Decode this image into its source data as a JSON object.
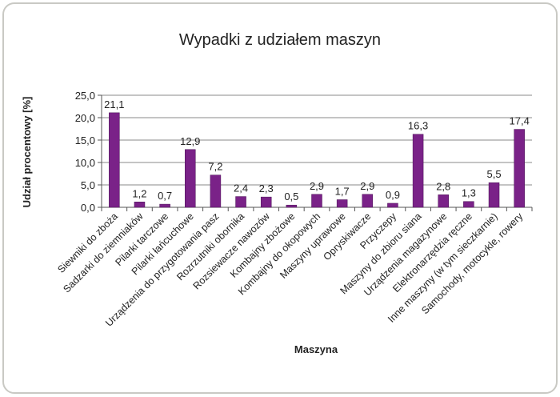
{
  "chart_data": {
    "type": "bar",
    "title": "Wypadki z udziałem maszyn",
    "xlabel": "Maszyna",
    "ylabel": "Udział procentowy [%]",
    "ylim": [
      0,
      25
    ],
    "yticks": [
      "0,0",
      "5,0",
      "10,0",
      "15,0",
      "20,0",
      "25,0"
    ],
    "grid": true,
    "bar_color": "#7a2288",
    "categories": [
      "Siewniki do zboża",
      "Sadzarki do ziemniaków",
      "Pilarki tarczowe",
      "Pilarki łańcuchowe",
      "Urządzenia do przygotowania pasz",
      "Rozrzutniki obornika",
      "Rozsiewacze nawozów",
      "Kombajny zbożowe",
      "Kombajny do okopowych",
      "Maszyny uprawowe",
      "Opryskiwacze",
      "Przyczepy",
      "Maszyny do zbioru siana",
      "Urządzenia magazynowe",
      "Elektronarzędzia ręczne",
      "Inne maszyny (w tym sieczkarnie)",
      "Samochody, motocykle, rowery"
    ],
    "values": [
      21.1,
      1.2,
      0.7,
      12.9,
      7.2,
      2.4,
      2.3,
      0.5,
      2.9,
      1.7,
      2.9,
      0.9,
      16.3,
      2.8,
      1.3,
      5.5,
      17.4
    ],
    "data_labels": [
      "21,1",
      "1,2",
      "0,7",
      "12,9",
      "7,2",
      "2,4",
      "2,3",
      "0,5",
      "2,9",
      "1,7",
      "2,9",
      "0,9",
      "16,3",
      "2,8",
      "1,3",
      "5,5",
      "17,4"
    ]
  }
}
